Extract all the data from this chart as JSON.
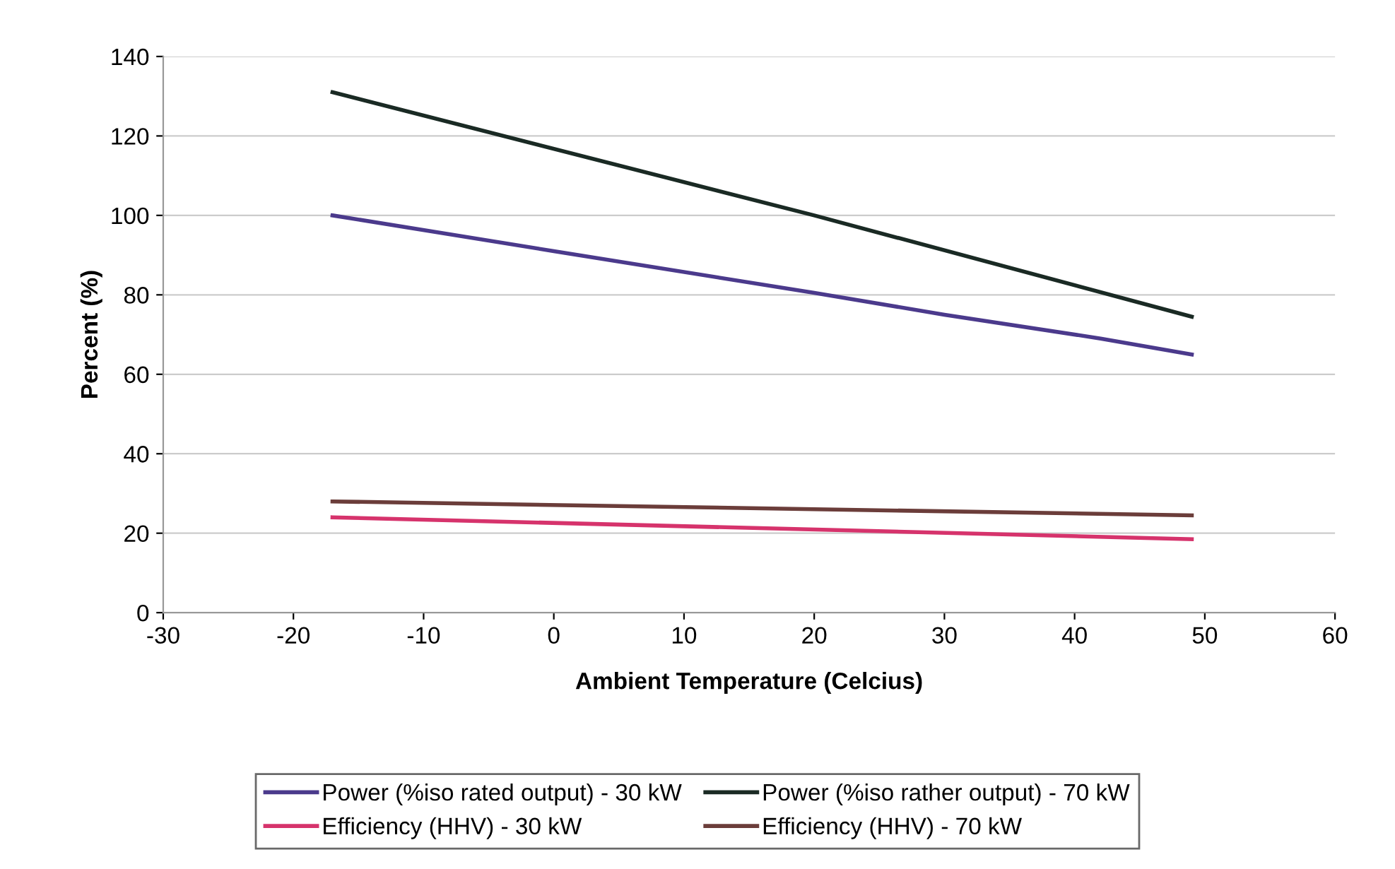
{
  "chart_data": {
    "type": "line",
    "xlabel": "Ambient Temperature (Celcius)",
    "ylabel": "Percent (%)",
    "xlim": [
      -30,
      60
    ],
    "xticks": [
      -30,
      -20,
      -10,
      0,
      10,
      20,
      30,
      40,
      50,
      60
    ],
    "ylim": [
      0,
      140
    ],
    "yticks": [
      0,
      20,
      40,
      60,
      80,
      100,
      120,
      140
    ],
    "grid": "y",
    "legend": "bottom",
    "series": [
      {
        "name": "Power (%iso rated output) - 30 kW",
        "color": "#4b3a8c",
        "x": [
          -17,
          0,
          20,
          30,
          42,
          49
        ],
        "values": [
          100,
          91,
          80.5,
          75,
          69,
          65
        ]
      },
      {
        "name": "Efficiency (HHV) - 30 kW",
        "color": "#d6336c",
        "x": [
          -17,
          49
        ],
        "values": [
          24,
          18.5
        ]
      },
      {
        "name": "Power (%iso rather output) - 70 kW",
        "color": "#1a2a24",
        "x": [
          -17,
          20,
          49
        ],
        "values": [
          131,
          100,
          74.5
        ]
      },
      {
        "name": "Efficiency (HHV) - 70 kW",
        "color": "#6b3d3a",
        "x": [
          -17,
          49
        ],
        "values": [
          28,
          24.5
        ]
      }
    ]
  }
}
